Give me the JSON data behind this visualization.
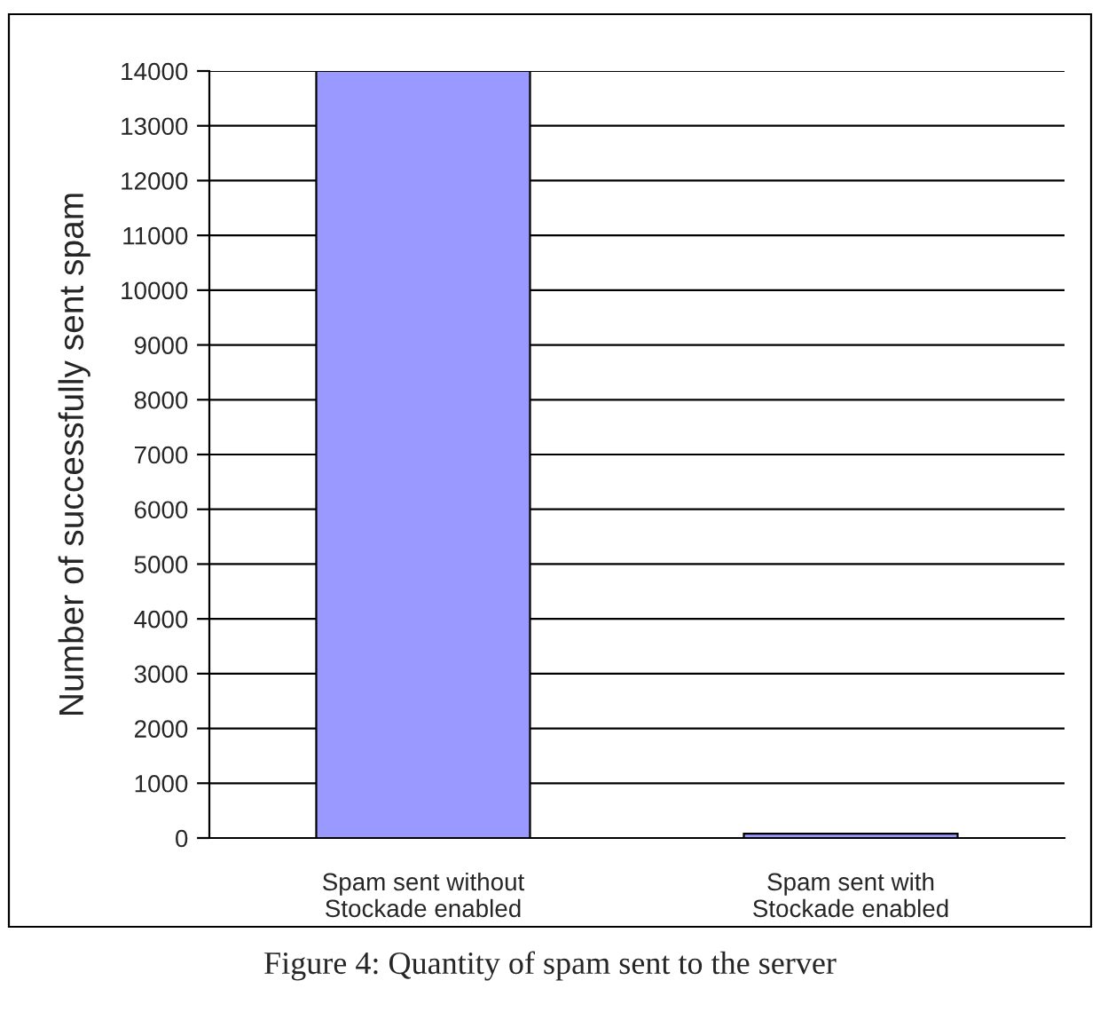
{
  "chart_data": {
    "type": "bar",
    "ylabel": "Number of successfully sent spam",
    "categories": [
      "Spam sent without\nStockade enabled",
      "Spam sent with\nStockade enabled"
    ],
    "values": [
      14000,
      80
    ],
    "color": "#9999ff",
    "ylim": [
      0,
      14000
    ],
    "yticks": [
      0,
      1000,
      2000,
      3000,
      4000,
      5000,
      6000,
      7000,
      8000,
      9000,
      10000,
      11000,
      12000,
      13000,
      14000
    ],
    "grid": "y",
    "legend": false,
    "annotations": [
      "Figure 4: Quantity of spam sent to the server"
    ]
  }
}
